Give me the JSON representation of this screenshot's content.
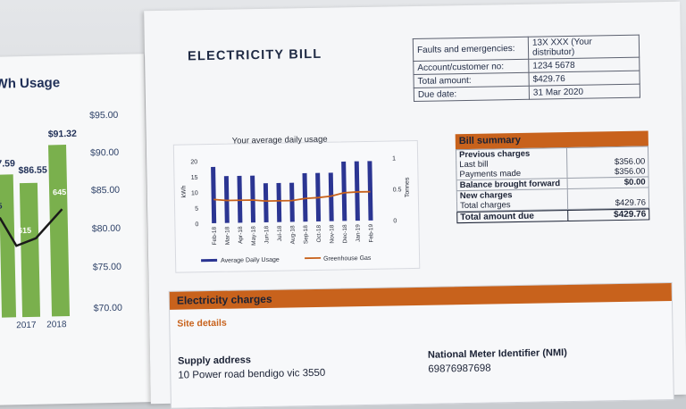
{
  "left_chart": {
    "title": "Wh Usage",
    "y_ticks": [
      "$95.00",
      "$90.00",
      "$85.00",
      "$80.00",
      "$75.00",
      "$70.00"
    ],
    "x_labels": [
      "2017",
      "2018"
    ],
    "values": [
      "7.59",
      "$86.55",
      "$91.32"
    ],
    "line_labels": [
      "5",
      "615",
      "645"
    ]
  },
  "bill": {
    "title": "ELECTRICITY BILL",
    "info": [
      {
        "label": "Faults and emergencies:",
        "value": "13X XXX (Your distributor)"
      },
      {
        "label": "Account/customer no:",
        "value": "1234 5678"
      },
      {
        "label": "Total amount:",
        "value": "$429.76"
      },
      {
        "label": "Due date:",
        "value": "31 Mar 2020"
      }
    ]
  },
  "usage_chart": {
    "title": "Your average daily usage",
    "ylabel_left": "kWh",
    "ylabel_right": "Tonnes",
    "y_left_ticks": [
      "20",
      "15",
      "10",
      "5",
      "0"
    ],
    "y_right_ticks": [
      "1",
      "0.5",
      "0"
    ],
    "legend": [
      "Average Daily Usage",
      "Greenhouse Gas"
    ],
    "colors": {
      "bar": "#2b3592",
      "line": "#c8621c"
    }
  },
  "chart_data": {
    "type": "bar",
    "title": "Your average daily usage",
    "categories": [
      "Feb-18",
      "Mar-18",
      "Apr-18",
      "May-18",
      "Jun-18",
      "Jul-18",
      "Aug-18",
      "Sep-18",
      "Oct-18",
      "Nov-18",
      "Dec-18",
      "Jan-19",
      "Feb-19"
    ],
    "series": [
      {
        "name": "Average Daily Usage",
        "values": [
          18,
          15,
          15,
          15,
          12.5,
          12.5,
          12.5,
          15.5,
          15.5,
          15.5,
          19,
          19,
          19
        ]
      },
      {
        "name": "Greenhouse Gas",
        "values": [
          0.38,
          0.36,
          0.36,
          0.36,
          0.34,
          0.34,
          0.34,
          0.37,
          0.38,
          0.4,
          0.45,
          0.46,
          0.46
        ]
      }
    ],
    "ylim": [
      0,
      20
    ],
    "y2lim": [
      0,
      1
    ]
  },
  "summary": {
    "title": "Bill summary",
    "rows": [
      {
        "label": "Previous charges",
        "value": "",
        "bold": true
      },
      {
        "label": "Last bill",
        "value": "$356.00",
        "bold": false
      },
      {
        "label": "Payments made",
        "value": "$356.00",
        "bold": false
      },
      {
        "label": "Balance brought forward",
        "value": "$0.00",
        "bold": true
      },
      {
        "label": "New charges",
        "value": "",
        "bold": true
      },
      {
        "label": "Total charges",
        "value": "$429.76",
        "bold": false
      }
    ],
    "total_label": "Total amount due",
    "total_value": "$429.76"
  },
  "charges": {
    "title": "Electricity charges",
    "site_details": "Site details",
    "supply_label": "Supply address",
    "supply_value": "10 Power road bendigo vic 3550",
    "nmi_label": "National Meter Identifier (NMI)",
    "nmi_value": "69876987698"
  }
}
